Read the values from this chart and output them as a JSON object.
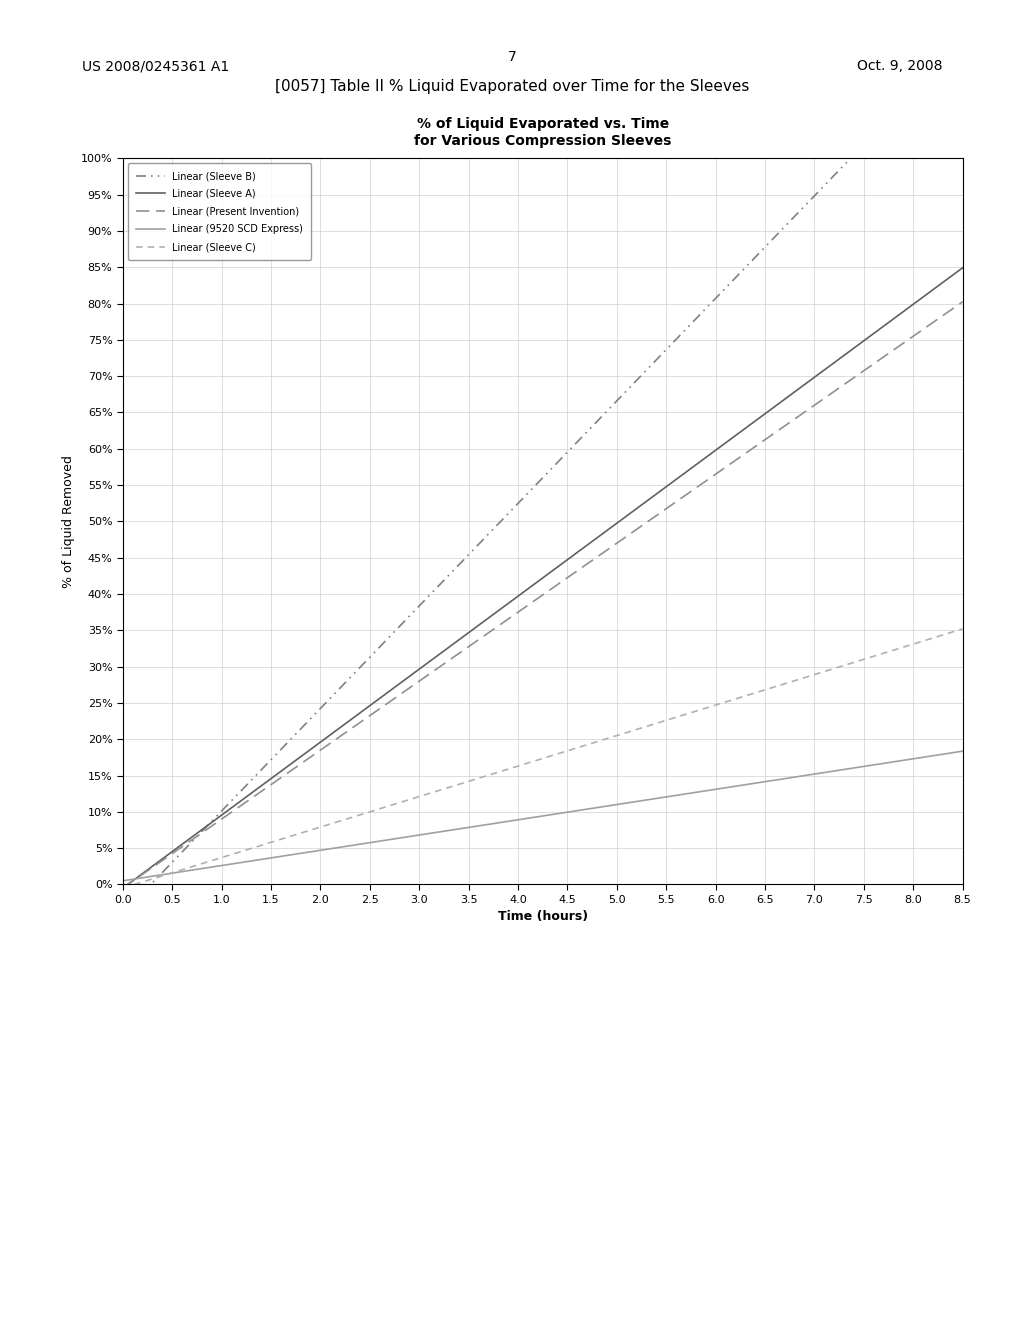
{
  "title_line1": "% of Liquid Evaporated vs. Time",
  "title_line2": "for Various Compression Sleeves",
  "xlabel": "Time (hours)",
  "ylabel": "% of Liquid Removed",
  "header_text": "7",
  "patent_left": "US 2008/0245361 A1",
  "patent_right": "Oct. 9, 2008",
  "section_label": "[0057] Table II % Liquid Evaporated over Time for the Sleeves",
  "xlim": [
    0.0,
    8.5
  ],
  "ylim": [
    0.0,
    1.0
  ],
  "xticks": [
    0.0,
    0.5,
    1.0,
    1.5,
    2.0,
    2.5,
    3.0,
    3.5,
    4.0,
    4.5,
    5.0,
    5.5,
    6.0,
    6.5,
    7.0,
    7.5,
    8.0,
    8.5
  ],
  "yticks": [
    0.0,
    0.05,
    0.1,
    0.15,
    0.2,
    0.25,
    0.3,
    0.35,
    0.4,
    0.45,
    0.5,
    0.55,
    0.6,
    0.65,
    0.7,
    0.75,
    0.8,
    0.85,
    0.9,
    0.95,
    1.0
  ],
  "lines": [
    {
      "label": "Linear (Sleeve B)",
      "slope": 0.1412,
      "intercept": -0.04,
      "color": "#808080",
      "linestyle": "--",
      "linewidth": 1.2,
      "dashes": [
        6,
        3,
        1,
        3,
        1,
        3
      ]
    },
    {
      "label": "Linear (Sleeve A)",
      "slope": 0.1005,
      "intercept": -0.005,
      "color": "#606060",
      "linestyle": "-",
      "linewidth": 1.2,
      "dashes": null
    },
    {
      "label": "Linear (Present Invention)",
      "slope": 0.095,
      "intercept": -0.005,
      "color": "#909090",
      "linestyle": "--",
      "linewidth": 1.2,
      "dashes": [
        8,
        4
      ]
    },
    {
      "label": "Linear (9520 SCD Express)",
      "slope": 0.021,
      "intercept": 0.005,
      "color": "#a0a0a0",
      "linestyle": "-",
      "linewidth": 1.2,
      "dashes": null
    },
    {
      "label": "Linear (Sleeve C)",
      "slope": 0.042,
      "intercept": -0.005,
      "color": "#b0b0b0",
      "linestyle": "--",
      "linewidth": 1.2,
      "dashes": [
        4,
        3,
        4,
        3
      ]
    }
  ],
  "background_color": "#ffffff",
  "grid_color": "#d0d0d0",
  "axis_color": "#000000",
  "legend_fontsize": 7,
  "tick_fontsize": 8,
  "axis_label_fontsize": 9,
  "title_fontsize": 10
}
